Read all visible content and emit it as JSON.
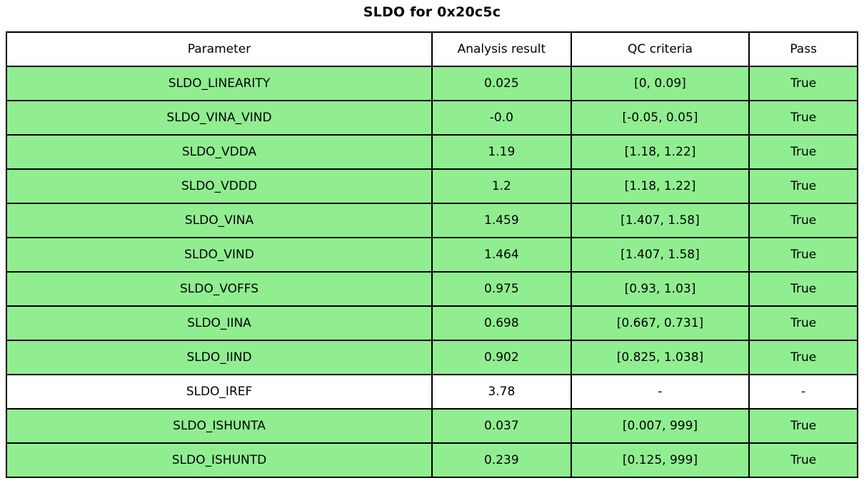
{
  "title": "SLDO for 0x20c5c",
  "colors": {
    "pass_row_green": "#90EE90",
    "neutral_row_white": "#ffffff",
    "border_black": "#000000"
  },
  "chart_data": {
    "type": "table",
    "title": "SLDO for 0x20c5c",
    "columns": [
      "Parameter",
      "Analysis result",
      "QC criteria",
      "Pass"
    ],
    "rows": [
      {
        "parameter": "SLDO_LINEARITY",
        "analysis_result": "0.025",
        "qc_criteria": "[0, 0.09]",
        "pass": "True",
        "highlight_green": true
      },
      {
        "parameter": "SLDO_VINA_VIND",
        "analysis_result": "-0.0",
        "qc_criteria": "[-0.05, 0.05]",
        "pass": "True",
        "highlight_green": true
      },
      {
        "parameter": "SLDO_VDDA",
        "analysis_result": "1.19",
        "qc_criteria": "[1.18, 1.22]",
        "pass": "True",
        "highlight_green": true
      },
      {
        "parameter": "SLDO_VDDD",
        "analysis_result": "1.2",
        "qc_criteria": "[1.18, 1.22]",
        "pass": "True",
        "highlight_green": true
      },
      {
        "parameter": "SLDO_VINA",
        "analysis_result": "1.459",
        "qc_criteria": "[1.407, 1.58]",
        "pass": "True",
        "highlight_green": true
      },
      {
        "parameter": "SLDO_VIND",
        "analysis_result": "1.464",
        "qc_criteria": "[1.407, 1.58]",
        "pass": "True",
        "highlight_green": true
      },
      {
        "parameter": "SLDO_VOFFS",
        "analysis_result": "0.975",
        "qc_criteria": "[0.93, 1.03]",
        "pass": "True",
        "highlight_green": true
      },
      {
        "parameter": "SLDO_IINA",
        "analysis_result": "0.698",
        "qc_criteria": "[0.667, 0.731]",
        "pass": "True",
        "highlight_green": true
      },
      {
        "parameter": "SLDO_IIND",
        "analysis_result": "0.902",
        "qc_criteria": "[0.825, 1.038]",
        "pass": "True",
        "highlight_green": true
      },
      {
        "parameter": "SLDO_IREF",
        "analysis_result": "3.78",
        "qc_criteria": "-",
        "pass": "-",
        "highlight_green": false
      },
      {
        "parameter": "SLDO_ISHUNTA",
        "analysis_result": "0.037",
        "qc_criteria": "[0.007, 999]",
        "pass": "True",
        "highlight_green": true
      },
      {
        "parameter": "SLDO_ISHUNTD",
        "analysis_result": "0.239",
        "qc_criteria": "[0.125, 999]",
        "pass": "True",
        "highlight_green": true
      }
    ]
  }
}
